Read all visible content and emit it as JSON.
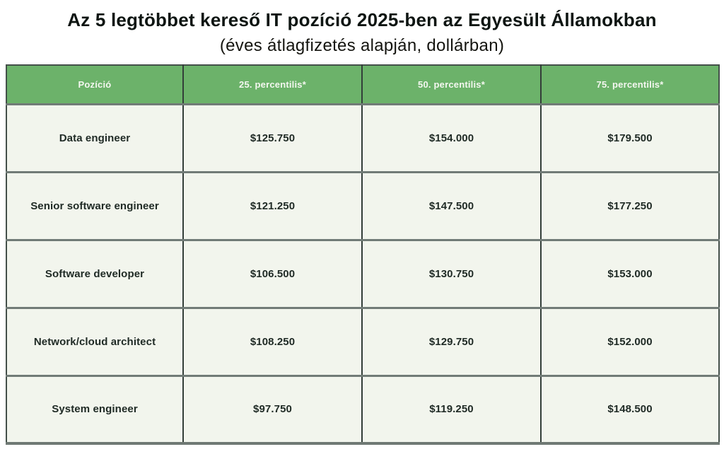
{
  "page": {
    "title": "Az 5 legtöbbet kereső IT pozíció 2025-ben az Egyesült Államokban",
    "subtitle": "(éves átlagfizetés alapján, dollárban)"
  },
  "colors": {
    "header_bg": "#6cb26a",
    "header_text": "#f4f7f0",
    "row_bg": "#f2f5ed",
    "cell_text": "#1f2a25",
    "vertical_border": "#333e39",
    "horizontal_border": "#717b77",
    "outer_border": "#44504a"
  },
  "chart_data": {
    "type": "table",
    "title": "Az 5 legtöbbet kereső IT pozíció 2025-ben az Egyesült Államokban",
    "subtitle": "(éves átlagfizetés alapján, dollárban)",
    "columns": [
      "Pozíció",
      "25. percentilis*",
      "50. percentilis*",
      "75. percentilis*"
    ],
    "rows": [
      [
        "Data engineer",
        "$125.750",
        "$154.000",
        "$179.500"
      ],
      [
        "Senior software engineer",
        "$121.250",
        "$147.500",
        "$177.250"
      ],
      [
        "Software developer",
        "$106.500",
        "$130.750",
        "$153.000"
      ],
      [
        "Network/cloud architect",
        "$108.250",
        "$129.750",
        "$152.000"
      ],
      [
        "System engineer",
        "$97.750",
        "$119.250",
        "$148.500"
      ]
    ],
    "values_numeric_usd": [
      {
        "position": "Data engineer",
        "p25": 125750,
        "p50": 154000,
        "p75": 179500
      },
      {
        "position": "Senior software engineer",
        "p25": 121250,
        "p50": 147500,
        "p75": 177250
      },
      {
        "position": "Software developer",
        "p25": 106500,
        "p50": 130750,
        "p75": 153000
      },
      {
        "position": "Network/cloud architect",
        "p25": 108250,
        "p50": 129750,
        "p75": 152000
      },
      {
        "position": "System engineer",
        "p25": 97750,
        "p50": 119250,
        "p75": 148500
      }
    ]
  }
}
